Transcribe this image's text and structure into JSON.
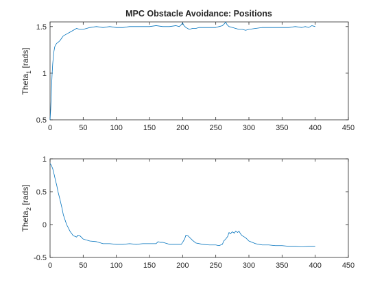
{
  "figure": {
    "background": "#ffffff"
  },
  "chart_data": [
    {
      "type": "line",
      "title": "MPC Obstacle Avoidance: Positions",
      "ylabel": {
        "main": "Theta",
        "sub": "1",
        "unit": " [rads]"
      },
      "xlabel": "",
      "xlim": [
        0,
        450
      ],
      "ylim": [
        0.5,
        1.55
      ],
      "xticks": [
        "0",
        "50",
        "100",
        "150",
        "200",
        "250",
        "300",
        "350",
        "400",
        "450"
      ],
      "xtick_values": [
        0,
        50,
        100,
        150,
        200,
        250,
        300,
        350,
        400,
        450
      ],
      "yticks": [
        "0.5",
        "1",
        "1.5"
      ],
      "ytick_values": [
        0.5,
        1.0,
        1.5
      ],
      "grid": false,
      "color": "#0072BD",
      "series": [
        {
          "x": [
            0,
            1,
            2,
            3,
            4,
            5,
            6,
            7,
            8,
            10,
            12,
            15,
            18,
            20,
            25,
            30,
            35,
            40,
            45,
            50,
            60,
            70,
            80,
            90,
            100,
            110,
            120,
            130,
            140,
            150,
            160,
            170,
            180,
            190,
            195,
            198,
            200,
            202,
            205,
            210,
            215,
            220,
            225,
            230,
            240,
            250,
            255,
            260,
            263,
            265,
            267,
            270,
            275,
            280,
            285,
            290,
            295,
            300,
            310,
            320,
            330,
            340,
            350,
            360,
            370,
            380,
            385,
            390,
            395,
            400
          ],
          "y": [
            0.5,
            0.62,
            0.8,
            0.98,
            1.1,
            1.18,
            1.24,
            1.28,
            1.3,
            1.32,
            1.33,
            1.35,
            1.38,
            1.4,
            1.42,
            1.44,
            1.46,
            1.48,
            1.47,
            1.47,
            1.49,
            1.5,
            1.49,
            1.5,
            1.49,
            1.49,
            1.5,
            1.5,
            1.5,
            1.5,
            1.51,
            1.5,
            1.5,
            1.51,
            1.5,
            1.52,
            1.54,
            1.51,
            1.49,
            1.47,
            1.48,
            1.48,
            1.49,
            1.49,
            1.49,
            1.49,
            1.5,
            1.51,
            1.53,
            1.55,
            1.52,
            1.5,
            1.49,
            1.48,
            1.47,
            1.47,
            1.46,
            1.47,
            1.48,
            1.49,
            1.49,
            1.49,
            1.49,
            1.49,
            1.5,
            1.49,
            1.5,
            1.49,
            1.51,
            1.5
          ]
        }
      ]
    },
    {
      "type": "line",
      "title": "",
      "ylabel": {
        "main": "Theta",
        "sub": "2",
        "unit": " [rads]"
      },
      "xlabel": "",
      "xlim": [
        0,
        450
      ],
      "ylim": [
        -0.5,
        1.0
      ],
      "xticks": [
        "0",
        "50",
        "100",
        "150",
        "200",
        "250",
        "300",
        "350",
        "400",
        "450"
      ],
      "xtick_values": [
        0,
        50,
        100,
        150,
        200,
        250,
        300,
        350,
        400,
        450
      ],
      "yticks": [
        "-0.5",
        "0",
        "0.5",
        "1"
      ],
      "ytick_values": [
        -0.5,
        0.0,
        0.5,
        1.0
      ],
      "grid": false,
      "color": "#0072BD",
      "series": [
        {
          "x": [
            0,
            2,
            4,
            6,
            8,
            10,
            12,
            15,
            18,
            20,
            25,
            30,
            35,
            38,
            40,
            42,
            45,
            48,
            50,
            60,
            70,
            80,
            90,
            100,
            110,
            120,
            130,
            140,
            150,
            160,
            163,
            166,
            170,
            180,
            190,
            198,
            200,
            203,
            205,
            208,
            210,
            215,
            220,
            230,
            240,
            250,
            255,
            260,
            262,
            265,
            268,
            270,
            272,
            275,
            278,
            280,
            283,
            285,
            288,
            290,
            295,
            300,
            310,
            320,
            330,
            340,
            350,
            360,
            370,
            380,
            390,
            400
          ],
          "y": [
            0.93,
            0.9,
            0.85,
            0.77,
            0.68,
            0.6,
            0.5,
            0.38,
            0.25,
            0.15,
            0.0,
            -0.1,
            -0.17,
            -0.18,
            -0.19,
            -0.16,
            -0.17,
            -0.2,
            -0.22,
            -0.25,
            -0.26,
            -0.29,
            -0.29,
            -0.3,
            -0.3,
            -0.29,
            -0.3,
            -0.29,
            -0.29,
            -0.29,
            -0.26,
            -0.27,
            -0.27,
            -0.3,
            -0.3,
            -0.3,
            -0.27,
            -0.22,
            -0.16,
            -0.17,
            -0.19,
            -0.24,
            -0.28,
            -0.3,
            -0.31,
            -0.31,
            -0.32,
            -0.3,
            -0.25,
            -0.22,
            -0.18,
            -0.12,
            -0.14,
            -0.11,
            -0.13,
            -0.1,
            -0.12,
            -0.1,
            -0.15,
            -0.17,
            -0.2,
            -0.25,
            -0.29,
            -0.31,
            -0.31,
            -0.32,
            -0.32,
            -0.33,
            -0.33,
            -0.34,
            -0.33,
            -0.33
          ]
        }
      ]
    }
  ]
}
